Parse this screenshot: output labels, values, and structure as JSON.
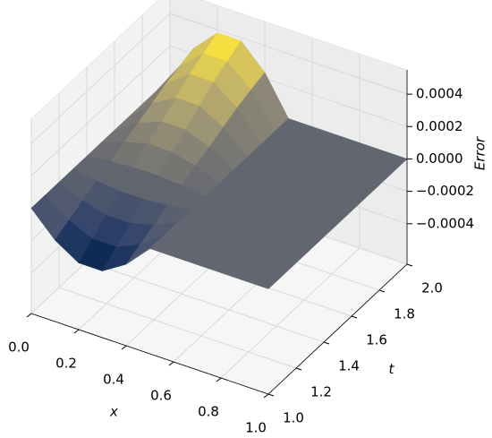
{
  "chart_data": {
    "type": "surface",
    "x_label": "x",
    "t_label": "t",
    "z_label": "Error",
    "x": [
      0,
      0.1,
      0.2,
      0.3,
      0.4,
      0.5,
      0.6,
      0.7,
      0.8,
      0.9,
      1
    ],
    "t": [
      1,
      1.1,
      1.2,
      1.3,
      1.4,
      1.5,
      1.6,
      1.7,
      1.8,
      1.9,
      2
    ],
    "z": [
      [
        0,
        -0.000147,
        -0.000238,
        -0.000238,
        -0.000147,
        0,
        0,
        0,
        0,
        0,
        0
      ],
      [
        0,
        -0.000106,
        -0.000171,
        -0.000171,
        -0.000106,
        0,
        0,
        0,
        0,
        0,
        0
      ],
      [
        0,
        -6.5e-05,
        -0.000105,
        -0.000105,
        -6.5e-05,
        0,
        0,
        0,
        0,
        0,
        0
      ],
      [
        0,
        -2.4e-05,
        -3.8e-05,
        -3.8e-05,
        -2.4e-05,
        0,
        0,
        0,
        0,
        0,
        0
      ],
      [
        0,
        1.8e-05,
        2.9e-05,
        2.9e-05,
        1.8e-05,
        0,
        0,
        0,
        0,
        0,
        0
      ],
      [
        0,
        5.9e-05,
        9.5e-05,
        9.5e-05,
        5.9e-05,
        0,
        0,
        0,
        0,
        0,
        0
      ],
      [
        0,
        9.4e-05,
        0.000152,
        0.000152,
        9.4e-05,
        0,
        0,
        0,
        0,
        0,
        0
      ],
      [
        0,
        0.000135,
        0.000219,
        0.000219,
        0.000135,
        0,
        0,
        0,
        0,
        0,
        0
      ],
      [
        0,
        0.000176,
        0.000285,
        0.000285,
        0.000176,
        0,
        0,
        0,
        0,
        0,
        0
      ],
      [
        0,
        0.000206,
        0.000333,
        0.000333,
        0.000206,
        0,
        0,
        0,
        0,
        0,
        0
      ],
      [
        0,
        0.000235,
        0.00038,
        0.00038,
        0.000235,
        0,
        0,
        0,
        0,
        0,
        0
      ]
    ],
    "colormap": [
      "#00224e",
      "#35456c",
      "#666970",
      "#948e77",
      "#c8b866",
      "#fee838"
    ],
    "xlim": [
      0,
      1
    ],
    "tlim": [
      1,
      2
    ],
    "zlim": [
      -0.00065,
      0.00055
    ],
    "xticks": [
      {
        "value": 0,
        "label": "0.0"
      },
      {
        "value": 0.2,
        "label": "0.2"
      },
      {
        "value": 0.4,
        "label": "0.4"
      },
      {
        "value": 0.6,
        "label": "0.6"
      },
      {
        "value": 0.8,
        "label": "0.8"
      },
      {
        "value": 1,
        "label": "1.0"
      }
    ],
    "tticks": [
      {
        "value": 1,
        "label": "1.0"
      },
      {
        "value": 1.2,
        "label": "1.2"
      },
      {
        "value": 1.4,
        "label": "1.4"
      },
      {
        "value": 1.6,
        "label": "1.6"
      },
      {
        "value": 1.8,
        "label": "1.8"
      },
      {
        "value": 2,
        "label": "2.0"
      }
    ],
    "zticks": [
      {
        "value": -0.0004,
        "label": "−0.0004"
      },
      {
        "value": -0.0002,
        "label": "−0.0002"
      },
      {
        "value": 0,
        "label": "0.0000"
      },
      {
        "value": 0.0002,
        "label": "0.0002"
      },
      {
        "value": 0.0004,
        "label": "0.0004"
      }
    ],
    "grid": true
  }
}
